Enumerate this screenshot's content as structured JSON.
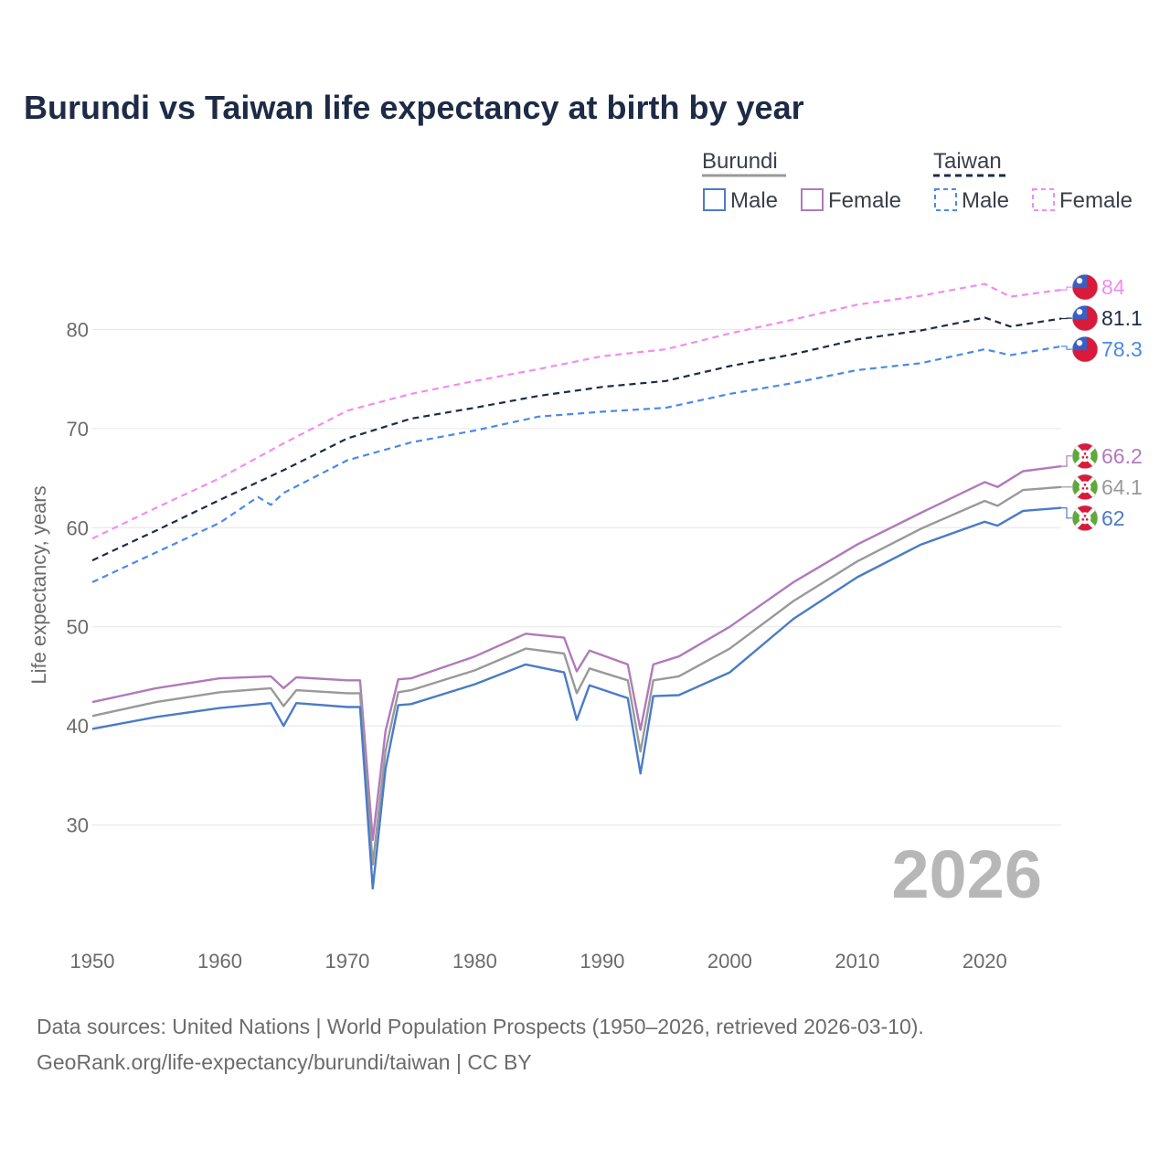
{
  "chart_data": {
    "type": "line",
    "title": "Burundi vs Taiwan life expectancy at birth by year",
    "xlabel": "",
    "ylabel": "Life expectancy, years",
    "xlim": [
      1950,
      2026
    ],
    "ylim": [
      20,
      90
    ],
    "x_ticks": [
      1950,
      1960,
      1970,
      1980,
      1990,
      2000,
      2010,
      2020
    ],
    "y_ticks": [
      30,
      40,
      50,
      60,
      70,
      80
    ],
    "grid": true,
    "current_year": "2026",
    "legend": {
      "groups": [
        {
          "country": "Burundi",
          "line_style": "solid",
          "color": "#999999",
          "entries": [
            {
              "label": "Male",
              "color": "#4a7bc8"
            },
            {
              "label": "Female",
              "color": "#b07aba"
            }
          ]
        },
        {
          "country": "Taiwan",
          "line_style": "dashed",
          "color": "#1e2b46",
          "entries": [
            {
              "label": "Male",
              "color": "#4a8ae6"
            },
            {
              "label": "Female",
              "color": "#f28cf0"
            }
          ]
        }
      ]
    },
    "series": [
      {
        "name": "Taiwan Female",
        "country": "Taiwan",
        "dash": true,
        "color": "#f28cf0",
        "end_label": "84",
        "flag": "taiwan",
        "points": [
          [
            1950,
            58.9
          ],
          [
            1955,
            62.0
          ],
          [
            1960,
            65.0
          ],
          [
            1965,
            68.5
          ],
          [
            1970,
            71.8
          ],
          [
            1975,
            73.5
          ],
          [
            1980,
            74.8
          ],
          [
            1985,
            76.0
          ],
          [
            1990,
            77.3
          ],
          [
            1995,
            78.0
          ],
          [
            2000,
            79.6
          ],
          [
            2005,
            81.0
          ],
          [
            2010,
            82.5
          ],
          [
            2015,
            83.4
          ],
          [
            2020,
            84.6
          ],
          [
            2022,
            83.3
          ],
          [
            2026,
            84.0
          ]
        ]
      },
      {
        "name": "Taiwan Total",
        "country": "Taiwan",
        "dash": true,
        "color": "#1e2b46",
        "end_label": "81.1",
        "flag": "taiwan",
        "points": [
          [
            1950,
            56.7
          ],
          [
            1955,
            59.7
          ],
          [
            1960,
            62.8
          ],
          [
            1965,
            65.8
          ],
          [
            1970,
            69.0
          ],
          [
            1975,
            71.0
          ],
          [
            1980,
            72.1
          ],
          [
            1985,
            73.3
          ],
          [
            1990,
            74.2
          ],
          [
            1995,
            74.8
          ],
          [
            2000,
            76.3
          ],
          [
            2005,
            77.5
          ],
          [
            2010,
            79.0
          ],
          [
            2015,
            79.9
          ],
          [
            2020,
            81.2
          ],
          [
            2022,
            80.3
          ],
          [
            2026,
            81.1
          ]
        ]
      },
      {
        "name": "Taiwan Male",
        "country": "Taiwan",
        "dash": true,
        "color": "#4a8ae6",
        "end_label": "78.3",
        "flag": "taiwan",
        "points": [
          [
            1950,
            54.5
          ],
          [
            1955,
            57.5
          ],
          [
            1960,
            60.5
          ],
          [
            1963,
            63.1
          ],
          [
            1964,
            62.3
          ],
          [
            1965,
            63.5
          ],
          [
            1970,
            66.8
          ],
          [
            1975,
            68.6
          ],
          [
            1980,
            69.8
          ],
          [
            1985,
            71.2
          ],
          [
            1990,
            71.7
          ],
          [
            1995,
            72.1
          ],
          [
            2000,
            73.5
          ],
          [
            2005,
            74.6
          ],
          [
            2010,
            75.9
          ],
          [
            2015,
            76.6
          ],
          [
            2020,
            78.0
          ],
          [
            2022,
            77.4
          ],
          [
            2026,
            78.3
          ]
        ]
      },
      {
        "name": "Burundi Female",
        "country": "Burundi",
        "dash": false,
        "color": "#b07aba",
        "end_label": "66.2",
        "flag": "burundi",
        "points": [
          [
            1950,
            42.4
          ],
          [
            1955,
            43.8
          ],
          [
            1960,
            44.8
          ],
          [
            1964,
            45.0
          ],
          [
            1965,
            43.8
          ],
          [
            1966,
            44.9
          ],
          [
            1970,
            44.6
          ],
          [
            1971,
            44.6
          ],
          [
            1972,
            28.5
          ],
          [
            1973,
            39.5
          ],
          [
            1974,
            44.7
          ],
          [
            1975,
            44.8
          ],
          [
            1980,
            47.0
          ],
          [
            1984,
            49.3
          ],
          [
            1987,
            48.9
          ],
          [
            1988,
            45.5
          ],
          [
            1989,
            47.6
          ],
          [
            1992,
            46.2
          ],
          [
            1993,
            39.6
          ],
          [
            1994,
            46.2
          ],
          [
            1996,
            47.0
          ],
          [
            2000,
            50.0
          ],
          [
            2005,
            54.5
          ],
          [
            2010,
            58.3
          ],
          [
            2015,
            61.5
          ],
          [
            2020,
            64.6
          ],
          [
            2021,
            64.1
          ],
          [
            2023,
            65.7
          ],
          [
            2026,
            66.2
          ]
        ]
      },
      {
        "name": "Burundi Total",
        "country": "Burundi",
        "dash": false,
        "color": "#999999",
        "end_label": "64.1",
        "flag": "burundi",
        "points": [
          [
            1950,
            41.0
          ],
          [
            1955,
            42.4
          ],
          [
            1960,
            43.4
          ],
          [
            1964,
            43.8
          ],
          [
            1965,
            42.0
          ],
          [
            1966,
            43.6
          ],
          [
            1970,
            43.3
          ],
          [
            1971,
            43.3
          ],
          [
            1972,
            26.0
          ],
          [
            1973,
            37.5
          ],
          [
            1974,
            43.4
          ],
          [
            1975,
            43.6
          ],
          [
            1980,
            45.6
          ],
          [
            1984,
            47.8
          ],
          [
            1987,
            47.3
          ],
          [
            1988,
            43.3
          ],
          [
            1989,
            45.8
          ],
          [
            1992,
            44.6
          ],
          [
            1993,
            37.4
          ],
          [
            1994,
            44.6
          ],
          [
            1996,
            45.0
          ],
          [
            2000,
            47.8
          ],
          [
            2005,
            52.6
          ],
          [
            2010,
            56.6
          ],
          [
            2015,
            59.9
          ],
          [
            2020,
            62.7
          ],
          [
            2021,
            62.2
          ],
          [
            2023,
            63.8
          ],
          [
            2026,
            64.1
          ]
        ]
      },
      {
        "name": "Burundi Male",
        "country": "Burundi",
        "dash": false,
        "color": "#4a7bc8",
        "end_label": "62",
        "flag": "burundi",
        "points": [
          [
            1950,
            39.7
          ],
          [
            1955,
            40.9
          ],
          [
            1960,
            41.8
          ],
          [
            1964,
            42.3
          ],
          [
            1965,
            40.0
          ],
          [
            1966,
            42.3
          ],
          [
            1970,
            41.9
          ],
          [
            1971,
            41.9
          ],
          [
            1972,
            23.6
          ],
          [
            1973,
            35.7
          ],
          [
            1974,
            42.1
          ],
          [
            1975,
            42.2
          ],
          [
            1980,
            44.2
          ],
          [
            1984,
            46.2
          ],
          [
            1987,
            45.4
          ],
          [
            1988,
            40.6
          ],
          [
            1989,
            44.1
          ],
          [
            1992,
            42.8
          ],
          [
            1993,
            35.2
          ],
          [
            1994,
            43.0
          ],
          [
            1996,
            43.1
          ],
          [
            2000,
            45.4
          ],
          [
            2005,
            50.8
          ],
          [
            2010,
            55.0
          ],
          [
            2015,
            58.3
          ],
          [
            2020,
            60.6
          ],
          [
            2021,
            60.2
          ],
          [
            2023,
            61.7
          ],
          [
            2026,
            62.0
          ]
        ]
      }
    ]
  },
  "footer": {
    "line1": "Data sources: United Nations | World Population Prospects (1950–2026, retrieved 2026-03-10).",
    "line2": "GeoRank.org/life-expectancy/burundi/taiwan | CC BY"
  }
}
